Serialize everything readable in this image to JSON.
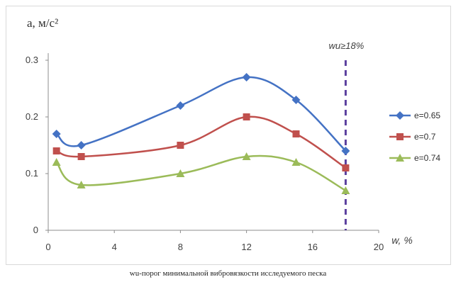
{
  "chart_data": {
    "type": "line",
    "x": [
      0.5,
      2,
      8,
      12,
      15,
      18
    ],
    "series": [
      {
        "name": "e=0.65",
        "values": [
          0.17,
          0.15,
          0.22,
          0.27,
          0.23,
          0.14
        ],
        "color": "#4472c4",
        "marker": "diamond"
      },
      {
        "name": "e=0.7",
        "values": [
          0.14,
          0.13,
          0.15,
          0.2,
          0.17,
          0.11
        ],
        "color": "#c0504d",
        "marker": "square"
      },
      {
        "name": "e=0.74",
        "values": [
          0.12,
          0.08,
          0.1,
          0.13,
          0.12,
          0.07
        ],
        "color": "#9bbb59",
        "marker": "triangle"
      }
    ],
    "xlabel": "w, %",
    "ylabel": "a, м/с²",
    "xlim": [
      0,
      20
    ],
    "ylim": [
      0,
      0.3
    ],
    "xticks": [
      "0",
      "4",
      "8",
      "12",
      "16",
      "20"
    ],
    "yticks": [
      "0",
      "0.1",
      "0.2",
      "0.3"
    ],
    "threshold": {
      "x": 18,
      "label": "wu≥18%",
      "color": "#5b3f9e",
      "style": "dashed"
    },
    "grid": false,
    "legend_position": "right",
    "caption": "wu-порог минимальной вибровязкости исследуемого песка"
  }
}
